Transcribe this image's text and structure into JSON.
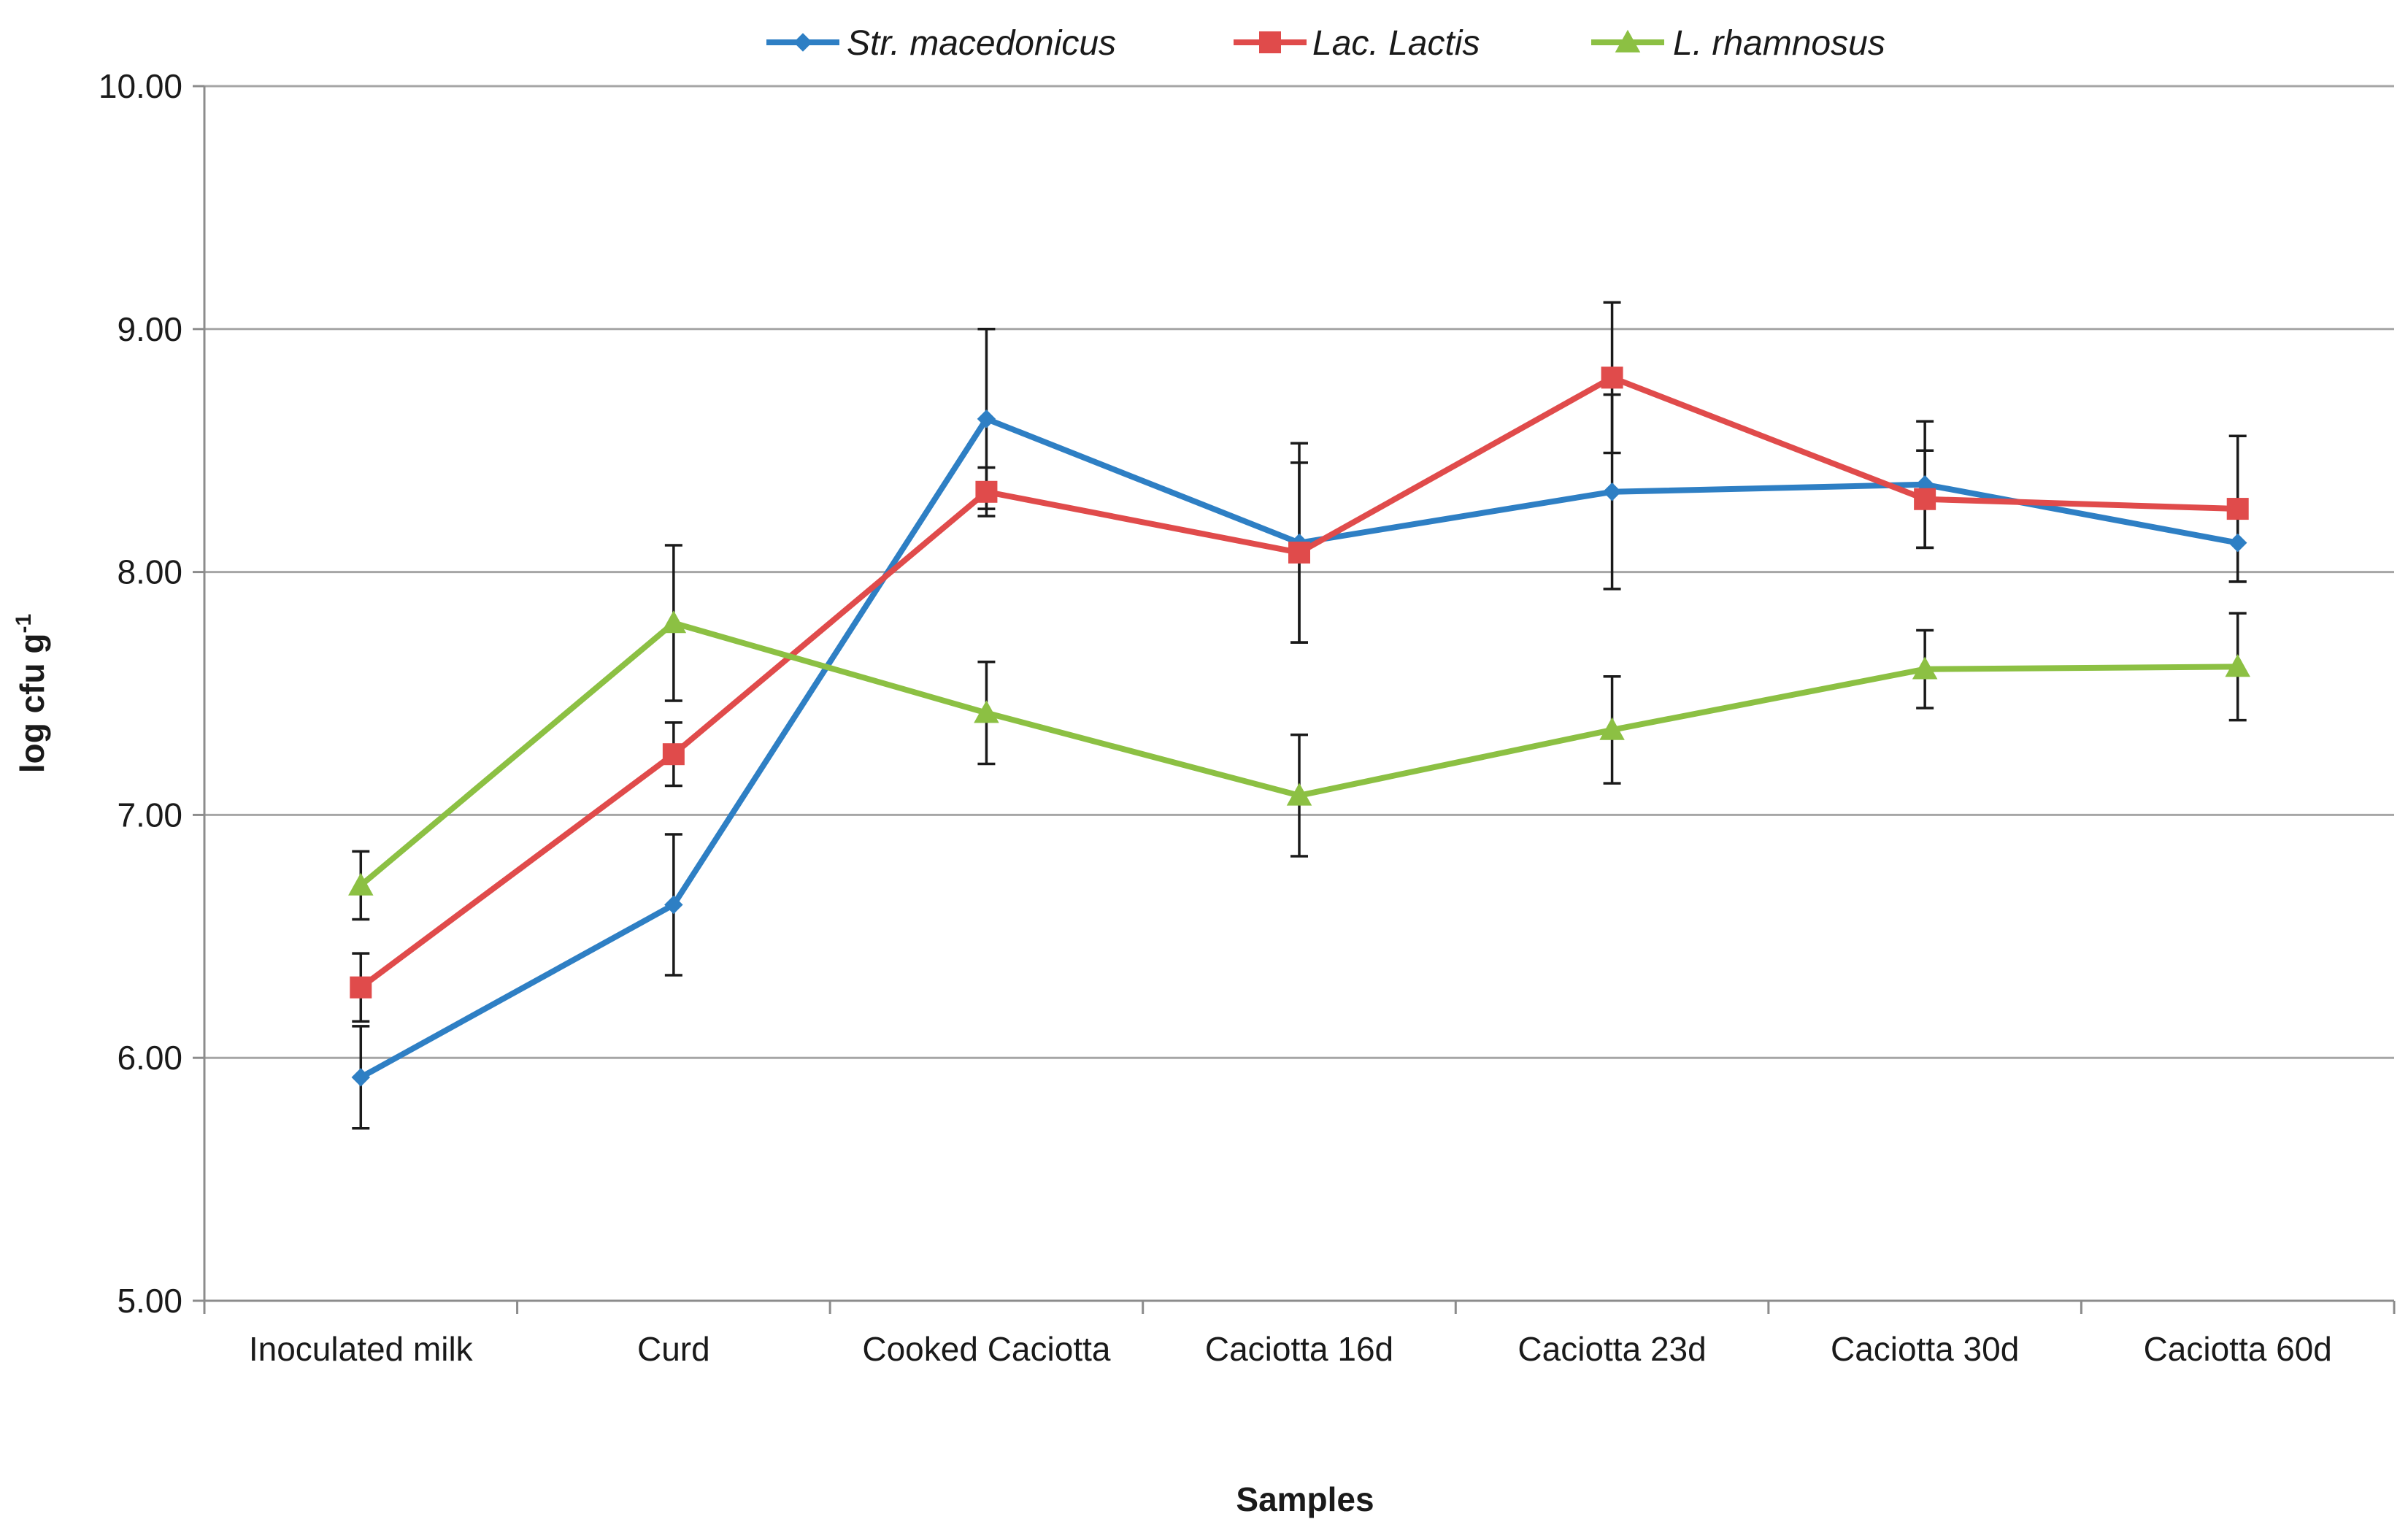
{
  "chart_data": {
    "type": "line",
    "title": "",
    "xlabel": "Samples",
    "ylabel": "log cfu g",
    "ylabel_superscript": "-1",
    "ylim": [
      5,
      10
    ],
    "yticks": [
      "5.00",
      "6.00",
      "7.00",
      "8.00",
      "9.00",
      "10.00"
    ],
    "grid": true,
    "legend": "top-center",
    "categories": [
      "Inoculated milk",
      "Curd",
      "Cooked Caciotta",
      "Caciotta 16d",
      "Caciotta 23d",
      "Caciotta 30d",
      "Caciotta 60d"
    ],
    "series": [
      {
        "name": "Str. macedonicus",
        "color": "#2e7fc4",
        "marker": "diamond",
        "values": [
          5.92,
          6.63,
          8.63,
          8.12,
          8.33,
          8.36,
          8.12
        ],
        "error": [
          0.21,
          0.29,
          0.37,
          0.41,
          0.4,
          0.26,
          0.16
        ]
      },
      {
        "name": "Lac. Lactis",
        "color": "#e04b4b",
        "marker": "square",
        "values": [
          6.29,
          7.25,
          8.33,
          8.08,
          8.8,
          8.3,
          8.26
        ],
        "error": [
          0.14,
          0.13,
          0.1,
          0.37,
          0.31,
          0.2,
          0.3
        ]
      },
      {
        "name": "L. rhamnosus",
        "color": "#8cc043",
        "marker": "triangle",
        "values": [
          6.71,
          7.79,
          7.42,
          7.08,
          7.35,
          7.6,
          7.61
        ],
        "error": [
          0.14,
          0.32,
          0.21,
          0.25,
          0.22,
          0.16,
          0.22
        ]
      }
    ]
  }
}
